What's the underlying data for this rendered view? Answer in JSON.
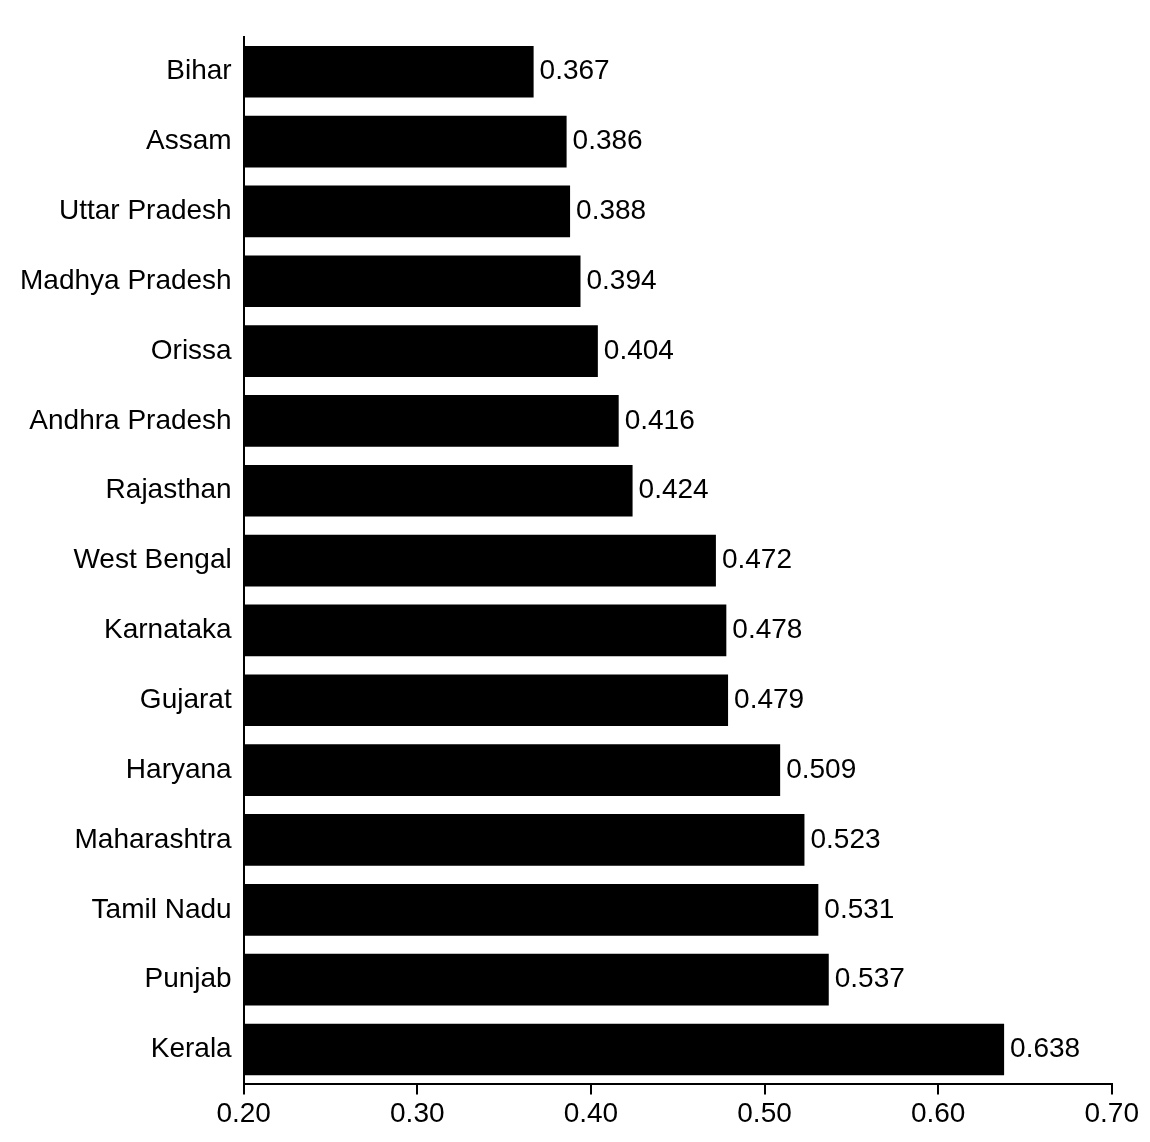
{
  "chart_data": {
    "type": "bar",
    "orientation": "horizontal",
    "categories": [
      "Bihar",
      "Assam",
      "Uttar Pradesh",
      "Madhya Pradesh",
      "Orissa",
      "Andhra Pradesh",
      "Rajasthan",
      "West Bengal",
      "Karnataka",
      "Gujarat",
      "Haryana",
      "Maharashtra",
      "Tamil Nadu",
      "Punjab",
      "Kerala"
    ],
    "values": [
      0.367,
      0.386,
      0.388,
      0.394,
      0.404,
      0.416,
      0.424,
      0.472,
      0.478,
      0.479,
      0.509,
      0.523,
      0.531,
      0.537,
      0.638
    ],
    "color": "#000000",
    "xlim": [
      0.2,
      0.7
    ],
    "xticks": [
      {
        "value": 0.2,
        "label": "0.20"
      },
      {
        "value": 0.3,
        "label": "0.30"
      },
      {
        "value": 0.4,
        "label": "0.40"
      },
      {
        "value": 0.5,
        "label": "0.50"
      },
      {
        "value": 0.6,
        "label": "0.60"
      },
      {
        "value": 0.7,
        "label": "0.70"
      }
    ],
    "data_labels": true,
    "grid": false,
    "legend": false
  }
}
